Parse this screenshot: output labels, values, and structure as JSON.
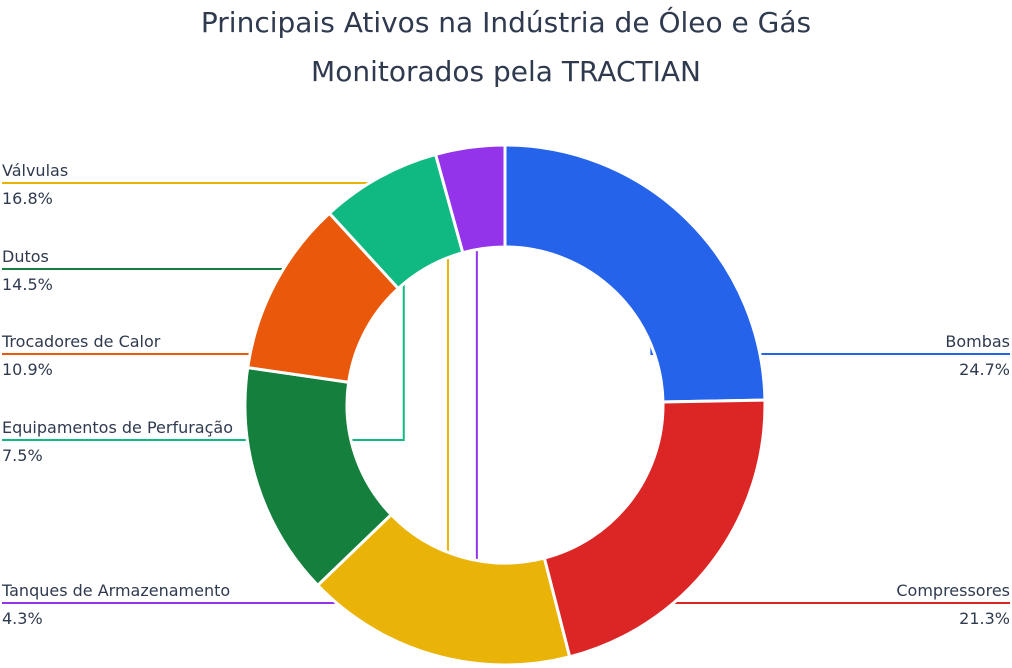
{
  "title_line1": "Principais Ativos na Indústria de Óleo e Gás",
  "title_line2": "Monitorados pela TRACTIAN",
  "chart_data": {
    "type": "pie",
    "donut": true,
    "legend": "none",
    "slices": [
      {
        "label": "Bombas",
        "value": 24.7,
        "display": "24.7%",
        "color": "#2563eb",
        "side": "right"
      },
      {
        "label": "Compressores",
        "value": 21.3,
        "display": "21.3%",
        "color": "#dc2626",
        "side": "right"
      },
      {
        "label": "Válvulas",
        "value": 16.8,
        "display": "16.8%",
        "color": "#eab308",
        "side": "left"
      },
      {
        "label": "Dutos",
        "value": 14.5,
        "display": "14.5%",
        "color": "#15803d",
        "side": "left"
      },
      {
        "label": "Trocadores de Calor",
        "value": 10.9,
        "display": "10.9%",
        "color": "#ea580c",
        "side": "left"
      },
      {
        "label": "Equipamentos de Perfuração",
        "value": 7.5,
        "display": "7.5%",
        "color": "#10b981",
        "side": "left"
      },
      {
        "label": "Tanques de Armazenamento",
        "value": 4.3,
        "display": "4.3%",
        "color": "#9333ea",
        "side": "left"
      }
    ]
  }
}
